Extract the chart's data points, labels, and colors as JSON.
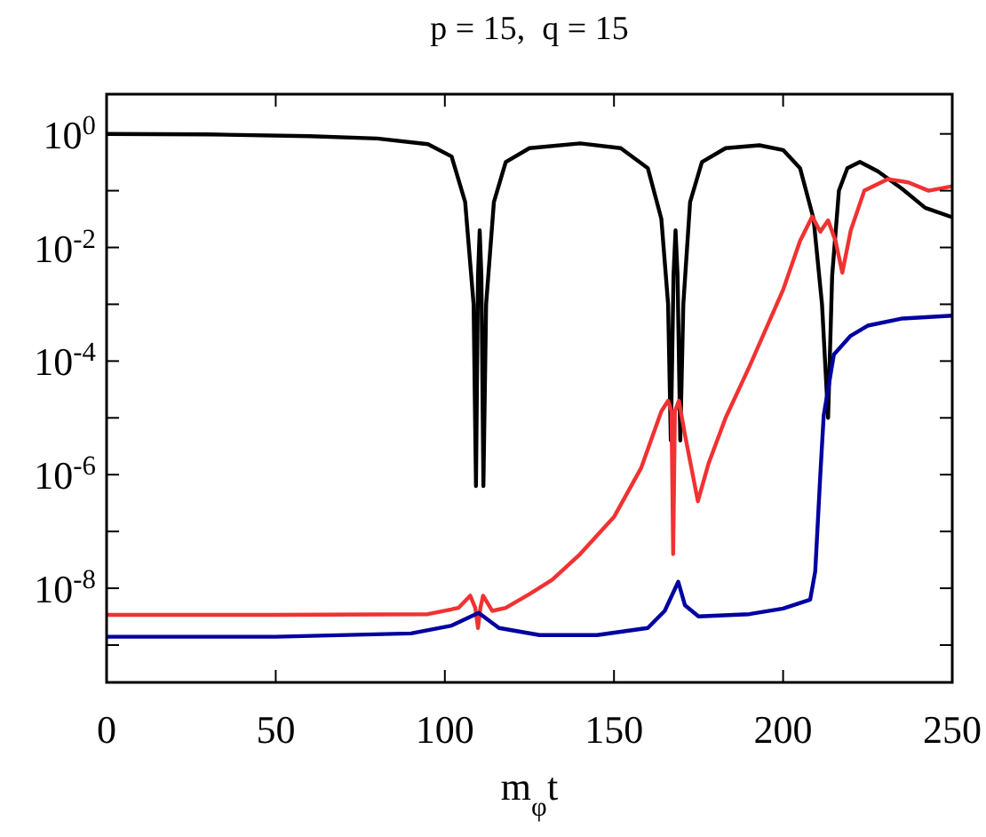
{
  "chart_data": {
    "type": "line",
    "title": "p = 15,  q = 15",
    "xlabel": "m$_{φ}$t",
    "log": "y",
    "grid": false,
    "line_style": "solid",
    "xlim": [
      0,
      250
    ],
    "xticks": [
      0,
      50,
      100,
      150,
      200,
      250
    ],
    "ylim": [
      2.2e-10,
      5
    ],
    "yticks": [
      {
        "value": 1,
        "label": "10$^{0}$"
      },
      {
        "value": 0.1,
        "label": null
      },
      {
        "value": 0.01,
        "label": "10$^{-2}$"
      },
      {
        "value": 0.001,
        "label": null
      },
      {
        "value": 0.0001,
        "label": "10$^{-4}$"
      },
      {
        "value": 1e-05,
        "label": null
      },
      {
        "value": 1e-06,
        "label": "10$^{-6}$"
      },
      {
        "value": 1e-07,
        "label": null
      },
      {
        "value": 1e-08,
        "label": "10$^{-8}$"
      },
      {
        "value": 1e-09,
        "label": null
      }
    ],
    "series": [
      {
        "color": "#000000",
        "x": [
          0,
          30,
          60,
          80,
          95,
          102,
          106,
          108.5,
          109.2,
          109.8,
          110.3,
          110.8,
          111.4,
          112.2,
          114.5,
          118,
          125,
          140,
          152,
          160,
          164,
          166,
          166.8,
          167.6,
          168.2,
          168.8,
          169.6,
          170.5,
          172.5,
          176,
          183,
          193,
          200,
          205,
          209,
          211.5,
          213.3,
          214.5,
          216.5,
          219,
          222.7,
          228,
          235,
          242,
          250
        ],
        "values": [
          1,
          0.98,
          0.91,
          0.83,
          0.66,
          0.4,
          0.063,
          0.001,
          6.3e-07,
          0.0032,
          0.02,
          0.0032,
          6.3e-07,
          0.001,
          0.063,
          0.32,
          0.56,
          0.68,
          0.56,
          0.25,
          0.032,
          0.001,
          4e-06,
          0.0032,
          0.02,
          0.0032,
          4e-06,
          0.001,
          0.063,
          0.32,
          0.56,
          0.63,
          0.52,
          0.25,
          0.032,
          0.001,
          1e-05,
          0.0032,
          0.1,
          0.25,
          0.32,
          0.22,
          0.11,
          0.05,
          0.034
        ]
      },
      {
        "color": "#f03232",
        "x": [
          0,
          50,
          95,
          104,
          107.5,
          109,
          109.8,
          110.5,
          111.3,
          114,
          118,
          125,
          131.7,
          140,
          150,
          158,
          164,
          166,
          167,
          167.5,
          168,
          169.2,
          171,
          174.8,
          178,
          183,
          190,
          200,
          205,
          208.6,
          211,
          213.3,
          215.5,
          217.5,
          220,
          224,
          231,
          237,
          243,
          250
        ],
        "values": [
          3.4e-09,
          3.4e-09,
          3.5e-09,
          4.5e-09,
          7.4e-09,
          4.5e-09,
          2e-09,
          4.5e-09,
          7.4e-09,
          4e-09,
          4.5e-09,
          7.9e-09,
          1.4e-08,
          4e-08,
          1.8e-07,
          1.3e-06,
          1.3e-05,
          2e-05,
          1.3e-05,
          4e-08,
          1.3e-05,
          2e-05,
          5e-06,
          3.4e-07,
          1.6e-06,
          1e-05,
          7.9e-05,
          0.0018,
          0.013,
          0.035,
          0.019,
          0.03,
          0.013,
          0.0036,
          0.02,
          0.1,
          0.16,
          0.14,
          0.1,
          0.12
        ]
      },
      {
        "color": "#0000a0",
        "x": [
          0,
          50,
          90,
          102,
          110,
          116,
          128,
          145,
          160,
          165,
          169,
          171,
          175,
          190,
          200,
          208,
          209.5,
          211,
          212,
          215,
          220,
          225,
          235,
          250
        ],
        "values": [
          1.4e-09,
          1.4e-09,
          1.6e-09,
          2.2e-09,
          3.7e-09,
          2e-09,
          1.5e-09,
          1.5e-09,
          2e-09,
          4e-09,
          1.3e-08,
          5e-09,
          3.2e-09,
          3.5e-09,
          4.4e-09,
          6.3e-09,
          2e-08,
          1e-06,
          1.1e-05,
          0.00013,
          0.00028,
          0.00042,
          0.00056,
          0.00063
        ]
      }
    ]
  }
}
